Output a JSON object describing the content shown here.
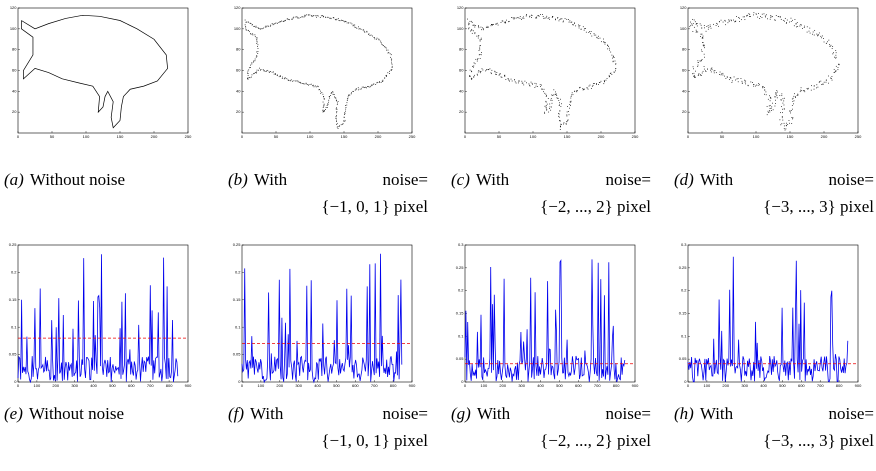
{
  "panels": [
    {
      "label": "(a)",
      "lines": [
        "Without noise"
      ],
      "kind": "contour",
      "axes": {
        "xlim": [
          0,
          250
        ],
        "ylim": [
          0,
          120
        ],
        "xticks": [
          0,
          50,
          100,
          150,
          200,
          250
        ],
        "yticks": [
          20,
          40,
          60,
          80,
          100,
          120
        ]
      }
    },
    {
      "label": "(b)",
      "lines": [
        "With noise=",
        "{−1, 0, 1} pixel"
      ],
      "kind": "contour",
      "axes": {
        "xlim": [
          0,
          250
        ],
        "ylim": [
          0,
          120
        ],
        "xticks": [
          0,
          50,
          100,
          150,
          200,
          250
        ],
        "yticks": [
          20,
          40,
          60,
          80,
          100,
          120
        ]
      }
    },
    {
      "label": "(c)",
      "lines": [
        "With noise=",
        "{−2, ..., 2} pixel"
      ],
      "kind": "contour",
      "axes": {
        "xlim": [
          0,
          250
        ],
        "ylim": [
          0,
          120
        ],
        "xticks": [
          0,
          50,
          100,
          150,
          200,
          250
        ],
        "yticks": [
          20,
          40,
          60,
          80,
          100,
          120
        ]
      }
    },
    {
      "label": "(d)",
      "lines": [
        "With noise=",
        "{−3, ..., 3} pixel"
      ],
      "kind": "contour",
      "axes": {
        "xlim": [
          0,
          250
        ],
        "ylim": [
          0,
          120
        ],
        "xticks": [
          0,
          50,
          100,
          150,
          200,
          250
        ],
        "yticks": [
          20,
          40,
          60,
          80,
          100,
          120
        ]
      }
    },
    {
      "label": "(e)",
      "lines": [
        "Without noise"
      ],
      "kind": "signal",
      "axes": {
        "xlim": [
          0,
          900
        ],
        "ylim": [
          0,
          0.25
        ],
        "xticks": [
          0,
          100,
          200,
          300,
          400,
          500,
          600,
          700,
          800,
          900
        ],
        "yticks": [
          0,
          0.05,
          0.1,
          0.15,
          0.2,
          0.25
        ],
        "threshold": 0.08
      }
    },
    {
      "label": "(f)",
      "lines": [
        "With noise=",
        "{−1, 0, 1} pixel"
      ],
      "kind": "signal",
      "axes": {
        "xlim": [
          0,
          900
        ],
        "ylim": [
          0,
          0.25
        ],
        "xticks": [
          0,
          100,
          200,
          300,
          400,
          500,
          600,
          700,
          800,
          900
        ],
        "yticks": [
          0,
          0.05,
          0.1,
          0.15,
          0.2,
          0.25
        ],
        "threshold": 0.07
      }
    },
    {
      "label": "(g)",
      "lines": [
        "With noise=",
        "{−2, ..., 2} pixel"
      ],
      "kind": "signal",
      "axes": {
        "xlim": [
          0,
          900
        ],
        "ylim": [
          0,
          0.3
        ],
        "xticks": [
          0,
          100,
          200,
          300,
          400,
          500,
          600,
          700,
          800,
          900
        ],
        "yticks": [
          0,
          0.05,
          0.1,
          0.15,
          0.2,
          0.25,
          0.3
        ],
        "threshold": 0.04
      }
    },
    {
      "label": "(h)",
      "lines": [
        "With noise=",
        "{−3, ..., 3} pixel"
      ],
      "kind": "signal",
      "axes": {
        "xlim": [
          0,
          900
        ],
        "ylim": [
          0,
          0.3
        ],
        "xticks": [
          0,
          100,
          200,
          300,
          400,
          500,
          600,
          700,
          800,
          900
        ],
        "yticks": [
          0,
          0.05,
          0.1,
          0.15,
          0.2,
          0.25,
          0.3
        ],
        "threshold": 0.04
      }
    }
  ]
}
